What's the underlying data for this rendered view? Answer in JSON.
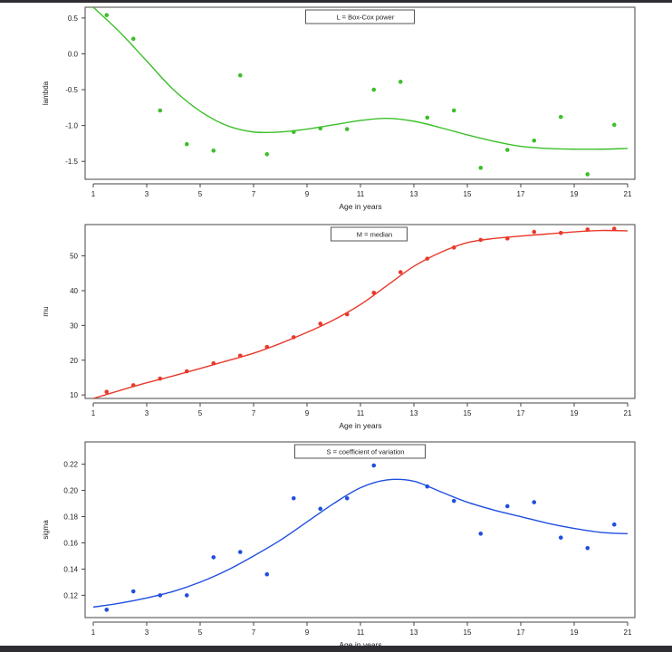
{
  "chart_data": [
    {
      "type": "scatter",
      "legend": "L = Box-Cox power",
      "legend_position": "top-center",
      "xlabel": "Age in years",
      "ylabel": "lambda",
      "color": "#3cbf2a",
      "xlim": [
        1,
        21
      ],
      "ylim": [
        -1.75,
        0.65
      ],
      "xticks": [
        1,
        3,
        5,
        7,
        9,
        11,
        13,
        15,
        17,
        19,
        21
      ],
      "yticks": [
        0.5,
        0.0,
        -0.5,
        -1.0,
        -1.5
      ],
      "ytick_labels": [
        "0.5",
        "0.0",
        "-0.5",
        "-1.0",
        "-1.5"
      ],
      "points": {
        "x": [
          1.5,
          2.5,
          3.5,
          4.5,
          5.5,
          6.5,
          7.5,
          8.5,
          9.5,
          10.5,
          11.5,
          12.5,
          13.5,
          14.5,
          15.5,
          16.5,
          17.5,
          18.5,
          19.5,
          20.5
        ],
        "y": [
          0.54,
          0.21,
          -0.79,
          -1.26,
          -1.35,
          -0.3,
          -1.4,
          -1.09,
          -1.04,
          -1.05,
          -0.5,
          -0.39,
          -0.89,
          -0.79,
          -1.59,
          -1.34,
          -1.21,
          -0.88,
          -1.68,
          -0.99
        ]
      },
      "curve": {
        "x": [
          1,
          2,
          3,
          4,
          5,
          6,
          7,
          8,
          9,
          10,
          11,
          12,
          13,
          14,
          15,
          16,
          17,
          18,
          19,
          20,
          21
        ],
        "y": [
          0.65,
          0.3,
          -0.1,
          -0.5,
          -0.8,
          -1.0,
          -1.09,
          -1.09,
          -1.05,
          -0.99,
          -0.93,
          -0.9,
          -0.94,
          -1.03,
          -1.13,
          -1.22,
          -1.29,
          -1.32,
          -1.33,
          -1.33,
          -1.32
        ]
      }
    },
    {
      "type": "scatter",
      "legend": "M = median",
      "legend_position": "top-center",
      "xlabel": "Age in years",
      "ylabel": "mu",
      "color": "#e8392b",
      "xlim": [
        1,
        21
      ],
      "ylim": [
        9,
        59
      ],
      "xticks": [
        1,
        3,
        5,
        7,
        9,
        11,
        13,
        15,
        17,
        19,
        21
      ],
      "yticks": [
        10,
        20,
        30,
        40,
        50
      ],
      "ytick_labels": [
        "10",
        "20",
        "30",
        "40",
        "50"
      ],
      "points": {
        "x": [
          1.5,
          2.5,
          3.5,
          4.5,
          5.5,
          6.5,
          7.5,
          8.5,
          9.5,
          10.5,
          11.5,
          12.5,
          13.5,
          14.5,
          15.5,
          16.5,
          17.5,
          18.5,
          19.5,
          20.5
        ],
        "y": [
          10.9,
          12.8,
          14.7,
          16.8,
          19.1,
          21.3,
          23.8,
          26.6,
          30.5,
          33.2,
          39.4,
          45.3,
          49.2,
          52.4,
          54.6,
          55.0,
          56.9,
          56.6,
          57.6,
          57.8
        ]
      },
      "curve": {
        "x": [
          1,
          2,
          3,
          4,
          5,
          6,
          7,
          8,
          9,
          10,
          11,
          12,
          13,
          14,
          15,
          16,
          17,
          18,
          19,
          20,
          21
        ],
        "y": [
          9,
          11.3,
          13.5,
          15.5,
          17.6,
          19.8,
          22,
          24.8,
          28,
          31.6,
          36,
          41.5,
          47,
          51,
          53.8,
          55,
          55.7,
          56.3,
          56.9,
          57.3,
          57.2
        ]
      }
    },
    {
      "type": "scatter",
      "legend": "S = coefficient of variation",
      "legend_position": "top-center",
      "xlabel": "Age in years",
      "ylabel": "sigma",
      "color": "#1f4fe0",
      "xlim": [
        1,
        21
      ],
      "ylim": [
        0.103,
        0.237
      ],
      "xticks": [
        1,
        3,
        5,
        7,
        9,
        11,
        13,
        15,
        17,
        19,
        21
      ],
      "yticks": [
        0.12,
        0.14,
        0.16,
        0.18,
        0.2,
        0.22
      ],
      "ytick_labels": [
        "0.12",
        "0.14",
        "0.16",
        "0.18",
        "0.20",
        "0.22"
      ],
      "points": {
        "x": [
          1.5,
          2.5,
          3.5,
          4.5,
          5.5,
          6.5,
          7.5,
          8.5,
          9.5,
          10.5,
          11.5,
          13.5,
          14.5,
          15.5,
          16.5,
          17.5,
          18.5,
          19.5,
          20.5
        ],
        "y": [
          0.109,
          0.123,
          0.12,
          0.12,
          0.149,
          0.153,
          0.136,
          0.194,
          0.186,
          0.194,
          0.219,
          0.203,
          0.192,
          0.167,
          0.188,
          0.191,
          0.164,
          0.156,
          0.174
        ]
      },
      "curve": {
        "x": [
          1,
          2,
          3,
          4,
          5,
          6,
          7,
          8,
          9,
          10,
          11,
          12,
          13,
          14,
          15,
          16,
          17,
          18,
          19,
          20,
          21
        ],
        "y": [
          0.111,
          0.114,
          0.118,
          0.123,
          0.13,
          0.139,
          0.15,
          0.162,
          0.176,
          0.19,
          0.202,
          0.208,
          0.207,
          0.199,
          0.191,
          0.185,
          0.18,
          0.175,
          0.171,
          0.168,
          0.167
        ]
      }
    }
  ]
}
